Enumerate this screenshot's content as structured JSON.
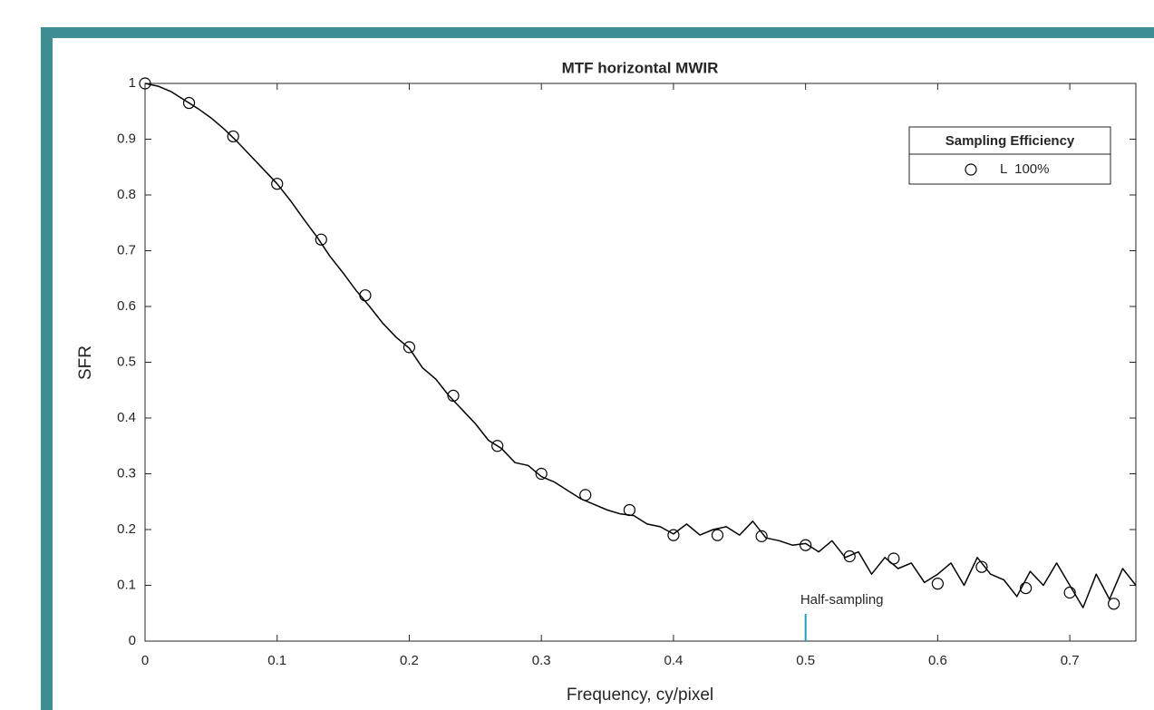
{
  "chart_data": {
    "type": "line",
    "title": "MTF horizontal MWIR",
    "x_label": "Frequency, cy/pixel",
    "y_label": "SFR",
    "xlim": [
      0,
      0.75
    ],
    "ylim": [
      0,
      1
    ],
    "xticks": [
      0,
      0.1,
      0.2,
      0.3,
      0.4,
      0.5,
      0.6,
      0.7
    ],
    "yticks": [
      0,
      0.1,
      0.2,
      0.3,
      0.4,
      0.5,
      0.6,
      0.7,
      0.8,
      0.9,
      1
    ],
    "legend_title": "Sampling Efficiency",
    "legend_position": "upper right",
    "series": [
      {
        "name": "L  100%",
        "color": "#000000",
        "marker": "circle",
        "x": [
          0,
          0.0333,
          0.0667,
          0.1,
          0.1333,
          0.1667,
          0.2,
          0.2333,
          0.2667,
          0.3,
          0.3333,
          0.3667,
          0.4,
          0.4333,
          0.4667,
          0.5,
          0.5333,
          0.5667,
          0.6,
          0.6333,
          0.6667,
          0.7,
          0.7333
        ],
        "values": [
          1,
          0.965,
          0.905,
          0.82,
          0.72,
          0.62,
          0.527,
          0.44,
          0.35,
          0.3,
          0.262,
          0.235,
          0.19,
          0.19,
          0.188,
          0.172,
          0.152,
          0.148,
          0.103,
          0.133,
          0.095,
          0.087,
          0.067
        ]
      },
      {
        "color": "#000000",
        "marker": "none",
        "x": [
          0,
          0.01,
          0.02,
          0.03,
          0.04,
          0.05,
          0.06,
          0.07,
          0.08,
          0.09,
          0.1,
          0.11,
          0.12,
          0.13,
          0.14,
          0.15,
          0.16,
          0.17,
          0.18,
          0.19,
          0.2,
          0.21,
          0.22,
          0.23,
          0.24,
          0.25,
          0.26,
          0.27,
          0.28,
          0.29,
          0.3,
          0.31,
          0.32,
          0.33,
          0.34,
          0.35,
          0.36,
          0.37,
          0.38,
          0.39,
          0.4,
          0.41,
          0.42,
          0.43,
          0.44,
          0.45,
          0.46,
          0.47,
          0.48,
          0.49,
          0.5,
          0.51,
          0.52,
          0.53,
          0.54,
          0.55,
          0.56,
          0.57,
          0.58,
          0.59,
          0.6,
          0.61,
          0.62,
          0.63,
          0.64,
          0.65,
          0.66,
          0.67,
          0.68,
          0.69,
          0.7,
          0.71,
          0.72,
          0.73,
          0.74,
          0.75
        ],
        "values": [
          1,
          0.995,
          0.985,
          0.97,
          0.955,
          0.938,
          0.918,
          0.895,
          0.87,
          0.845,
          0.82,
          0.79,
          0.757,
          0.725,
          0.69,
          0.66,
          0.628,
          0.6,
          0.57,
          0.545,
          0.525,
          0.49,
          0.47,
          0.44,
          0.415,
          0.39,
          0.36,
          0.345,
          0.32,
          0.315,
          0.295,
          0.285,
          0.27,
          0.255,
          0.245,
          0.235,
          0.228,
          0.225,
          0.21,
          0.205,
          0.192,
          0.21,
          0.19,
          0.2,
          0.205,
          0.19,
          0.215,
          0.185,
          0.18,
          0.172,
          0.175,
          0.16,
          0.18,
          0.15,
          0.16,
          0.12,
          0.15,
          0.13,
          0.14,
          0.105,
          0.12,
          0.14,
          0.1,
          0.15,
          0.12,
          0.11,
          0.08,
          0.125,
          0.1,
          0.14,
          0.1,
          0.06,
          0.12,
          0.075,
          0.13,
          0.1
        ]
      }
    ],
    "annotation": {
      "text": "Half-sampling",
      "x": 0.5,
      "color": "#1f9fbf"
    }
  }
}
